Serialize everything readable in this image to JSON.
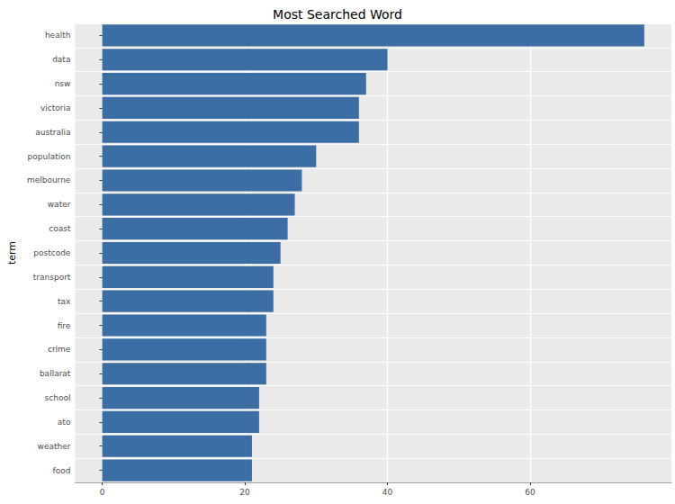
{
  "chart_data": {
    "type": "bar",
    "title": "Most Searched Word",
    "y_label": "term",
    "orientation": "horizontal",
    "categories": [
      "health",
      "data",
      "nsw",
      "victoria",
      "australia",
      "population",
      "melbourne",
      "water",
      "coast",
      "postcode",
      "transport",
      "tax",
      "fire",
      "crime",
      "ballarat",
      "school",
      "ato",
      "weather",
      "food"
    ],
    "values": [
      76,
      40,
      37,
      36,
      36,
      30,
      28,
      27,
      26,
      25,
      24,
      24,
      23,
      23,
      23,
      22,
      22,
      21,
      21
    ],
    "color": "#3b6ea5",
    "xlim": [
      -3.8,
      79.8
    ],
    "xticks": [
      0,
      20,
      40,
      60
    ],
    "grid": true
  }
}
